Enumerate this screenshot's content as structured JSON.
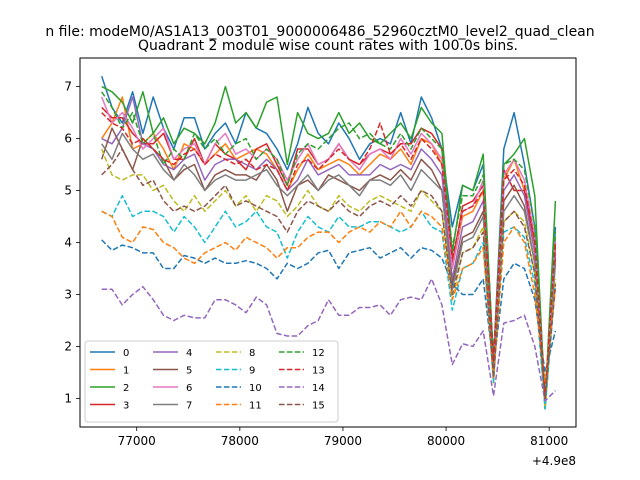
{
  "chart_data": {
    "type": "line",
    "suptitle": "n file: modeM0/AS1A13_003T01_9000006486_52960cztM0_level2_quad_clean",
    "title": "Quadrant 2 module wise count rates with 100.0s bins.",
    "xlabel": "",
    "ylabel": "",
    "x_offset_label": "+4.9e8",
    "xlim": [
      76450,
      81260
    ],
    "ylim": [
      0.45,
      7.55
    ],
    "xticks": [
      77000,
      78000,
      79000,
      80000,
      81000
    ],
    "xtick_labels": [
      "77000",
      "78000",
      "79000",
      "80000",
      "81000"
    ],
    "yticks": [
      1,
      2,
      3,
      4,
      5,
      6,
      7
    ],
    "ytick_labels": [
      "1",
      "2",
      "3",
      "4",
      "5",
      "6",
      "7"
    ],
    "legend_position": "lower-left",
    "legend_columns": 4,
    "x": [
      76660,
      76760,
      76860,
      76960,
      77060,
      77160,
      77260,
      77360,
      77460,
      77560,
      77660,
      77760,
      77860,
      77960,
      78060,
      78160,
      78260,
      78360,
      78460,
      78560,
      78660,
      78760,
      78860,
      78960,
      79060,
      79160,
      79260,
      79360,
      79460,
      79560,
      79660,
      79760,
      79860,
      79960,
      80060,
      80160,
      80260,
      80360,
      80460,
      80560,
      80660,
      80760,
      80860,
      80960,
      81060
    ],
    "series": [
      {
        "name": "0",
        "color": "#1f77b4",
        "dash": "solid",
        "values": [
          7.2,
          6.6,
          6.3,
          6.9,
          6.1,
          6.8,
          6.2,
          5.8,
          6.4,
          6.4,
          5.8,
          6.1,
          6.3,
          5.9,
          6.5,
          6.2,
          6.1,
          5.8,
          5.4,
          5.9,
          6.6,
          6.1,
          5.9,
          6.3,
          6.0,
          5.6,
          5.9,
          6.0,
          5.9,
          6.5,
          5.9,
          6.8,
          6.4,
          5.8,
          4.3,
          5.1,
          5.0,
          5.5,
          1.7,
          5.8,
          6.5,
          5.5,
          4.3,
          0.8,
          4.3
        ]
      },
      {
        "name": "1",
        "color": "#ff7f0e",
        "dash": "solid",
        "values": [
          6.0,
          6.3,
          6.8,
          5.8,
          5.9,
          6.1,
          5.8,
          5.4,
          5.9,
          5.8,
          5.5,
          5.7,
          5.9,
          5.6,
          5.7,
          5.8,
          5.7,
          5.4,
          5.0,
          5.4,
          5.7,
          5.4,
          5.5,
          5.6,
          5.5,
          5.3,
          5.5,
          5.7,
          5.6,
          5.8,
          5.5,
          6.0,
          5.9,
          5.5,
          3.5,
          4.5,
          4.6,
          5.0,
          1.6,
          5.2,
          5.6,
          5.0,
          3.8,
          1.0,
          3.9
        ]
      },
      {
        "name": "2",
        "color": "#2ca02c",
        "dash": "solid",
        "values": [
          7.0,
          6.9,
          6.7,
          6.3,
          6.9,
          6.1,
          6.4,
          5.9,
          6.2,
          6.1,
          5.9,
          6.3,
          7.0,
          6.3,
          6.5,
          6.2,
          6.7,
          6.8,
          5.5,
          6.5,
          6.1,
          6.0,
          6.1,
          6.5,
          6.1,
          6.3,
          6.0,
          5.9,
          6.1,
          6.3,
          6.0,
          6.6,
          6.3,
          6.1,
          3.8,
          5.1,
          5.0,
          5.7,
          1.6,
          5.5,
          5.7,
          6.0,
          4.9,
          0.9,
          4.8
        ]
      },
      {
        "name": "3",
        "color": "#d62728",
        "dash": "solid",
        "values": [
          6.6,
          6.4,
          6.4,
          6.1,
          5.9,
          5.9,
          6.1,
          5.6,
          5.6,
          6.0,
          5.5,
          5.9,
          5.7,
          5.6,
          5.4,
          5.8,
          5.9,
          5.5,
          5.1,
          5.8,
          5.8,
          5.5,
          5.6,
          5.9,
          5.6,
          5.5,
          5.7,
          5.8,
          5.7,
          5.9,
          5.9,
          6.2,
          6.1,
          5.8,
          3.6,
          4.7,
          4.8,
          5.1,
          1.7,
          5.4,
          5.0,
          5.0,
          4.0,
          0.9,
          4.0
        ]
      },
      {
        "name": "4",
        "color": "#9467bd",
        "dash": "solid",
        "values": [
          6.0,
          5.9,
          6.2,
          6.8,
          5.9,
          5.8,
          5.5,
          5.4,
          5.6,
          5.7,
          5.2,
          5.5,
          5.6,
          5.6,
          5.5,
          5.4,
          5.6,
          5.4,
          5.0,
          5.2,
          5.6,
          5.3,
          5.4,
          5.5,
          5.3,
          5.3,
          5.3,
          5.5,
          5.4,
          5.5,
          5.4,
          5.8,
          5.6,
          5.3,
          3.3,
          4.3,
          4.4,
          4.8,
          1.5,
          5.0,
          5.3,
          4.9,
          3.8,
          0.8,
          3.8
        ]
      },
      {
        "name": "5",
        "color": "#8c564b",
        "dash": "solid",
        "values": [
          5.6,
          6.2,
          5.8,
          5.4,
          6.0,
          5.8,
          5.6,
          5.2,
          5.4,
          5.5,
          5.0,
          5.3,
          5.4,
          5.3,
          5.3,
          5.2,
          5.5,
          5.2,
          4.6,
          5.1,
          5.2,
          5.0,
          5.3,
          5.2,
          5.1,
          5.0,
          5.2,
          5.3,
          5.2,
          5.4,
          5.2,
          5.6,
          5.4,
          5.0,
          3.2,
          4.1,
          4.2,
          4.6,
          1.4,
          4.8,
          5.1,
          4.7,
          3.6,
          0.9,
          3.7
        ]
      },
      {
        "name": "6",
        "color": "#e377c2",
        "dash": "solid",
        "values": [
          6.8,
          6.3,
          6.5,
          6.2,
          5.8,
          6.0,
          6.2,
          5.6,
          5.8,
          5.9,
          5.5,
          5.9,
          6.1,
          5.7,
          5.8,
          5.6,
          5.8,
          5.6,
          5.2,
          5.6,
          5.9,
          5.5,
          5.6,
          5.9,
          5.6,
          5.4,
          5.7,
          5.8,
          5.6,
          6.0,
          5.7,
          6.1,
          5.9,
          5.6,
          3.5,
          4.6,
          4.7,
          5.2,
          1.6,
          5.3,
          5.6,
          5.2,
          4.1,
          0.9,
          4.1
        ]
      },
      {
        "name": "7",
        "color": "#7f7f7f",
        "dash": "solid",
        "values": [
          5.9,
          5.6,
          6.1,
          5.8,
          5.6,
          5.7,
          5.4,
          5.2,
          5.5,
          5.3,
          5.0,
          5.2,
          5.3,
          5.2,
          5.2,
          5.3,
          5.4,
          5.1,
          4.9,
          5.1,
          5.3,
          5.0,
          5.2,
          5.3,
          5.1,
          4.9,
          5.2,
          5.2,
          5.1,
          5.3,
          5.0,
          5.4,
          5.2,
          5.0,
          3.1,
          4.0,
          4.1,
          4.5,
          1.4,
          4.6,
          4.9,
          4.6,
          3.6,
          0.8,
          3.6
        ]
      },
      {
        "name": "8",
        "color": "#bcbd22",
        "dash": "dashed",
        "values": [
          5.8,
          5.3,
          5.2,
          5.3,
          5.3,
          5.0,
          5.1,
          4.8,
          4.6,
          4.9,
          4.6,
          4.8,
          5.0,
          4.7,
          4.9,
          4.6,
          4.9,
          4.8,
          4.5,
          4.7,
          5.0,
          4.7,
          4.6,
          4.9,
          4.7,
          4.6,
          4.8,
          4.9,
          4.8,
          4.7,
          4.6,
          5.0,
          4.8,
          4.6,
          2.9,
          3.8,
          3.9,
          4.3,
          1.3,
          4.4,
          4.6,
          4.4,
          3.4,
          0.8,
          3.3
        ]
      },
      {
        "name": "9",
        "color": "#17becf",
        "dash": "dashed",
        "values": [
          4.6,
          4.5,
          4.9,
          4.5,
          4.6,
          4.6,
          4.5,
          4.2,
          4.5,
          4.3,
          4.0,
          4.3,
          4.6,
          4.3,
          4.4,
          4.6,
          4.3,
          4.2,
          3.7,
          4.2,
          4.5,
          4.3,
          4.2,
          4.5,
          4.3,
          4.3,
          4.4,
          4.4,
          4.3,
          4.2,
          4.3,
          4.6,
          4.3,
          4.2,
          2.7,
          3.5,
          3.6,
          4.0,
          1.3,
          4.2,
          4.3,
          4.1,
          3.2,
          0.8,
          3.2
        ]
      },
      {
        "name": "10",
        "color": "#1f77b4",
        "dash": "dashed",
        "values": [
          4.05,
          3.85,
          3.95,
          3.9,
          3.8,
          3.8,
          3.5,
          3.5,
          3.75,
          3.7,
          3.6,
          3.7,
          3.6,
          3.6,
          3.65,
          3.6,
          3.5,
          3.3,
          3.6,
          3.5,
          3.6,
          3.8,
          3.85,
          3.5,
          3.8,
          3.85,
          3.9,
          3.7,
          3.8,
          3.9,
          3.7,
          3.9,
          3.85,
          3.7,
          3.2,
          3.0,
          3.0,
          3.3,
          1.6,
          3.3,
          3.6,
          3.5,
          2.9,
          1.5,
          2.3
        ]
      },
      {
        "name": "11",
        "color": "#ff7f0e",
        "dash": "dashed",
        "values": [
          4.6,
          4.5,
          4.1,
          4.0,
          4.3,
          4.25,
          4.0,
          3.9,
          3.7,
          3.6,
          3.8,
          3.9,
          4.0,
          3.85,
          4.1,
          4.0,
          3.9,
          3.7,
          3.9,
          3.9,
          4.1,
          4.2,
          4.2,
          4.0,
          4.2,
          4.3,
          4.2,
          4.4,
          4.3,
          4.6,
          4.3,
          4.6,
          4.5,
          4.3,
          2.9,
          3.5,
          3.6,
          3.9,
          1.4,
          4.0,
          4.3,
          4.0,
          3.0,
          1.3,
          3.1
        ]
      },
      {
        "name": "12",
        "color": "#2ca02c",
        "dash": "dashed",
        "values": [
          6.9,
          6.6,
          6.2,
          6.5,
          5.9,
          6.1,
          5.5,
          5.8,
          5.6,
          6.1,
          5.8,
          6.0,
          5.7,
          5.9,
          6.0,
          5.6,
          5.8,
          5.6,
          5.1,
          5.7,
          5.9,
          5.8,
          6.0,
          6.2,
          6.3,
          6.0,
          6.1,
          5.9,
          5.8,
          6.1,
          5.8,
          6.2,
          6.0,
          5.8,
          3.9,
          4.9,
          4.9,
          5.3,
          1.8,
          5.5,
          5.6,
          5.4,
          4.3,
          1.0,
          4.2
        ]
      },
      {
        "name": "13",
        "color": "#d62728",
        "dash": "dashed",
        "values": [
          6.5,
          6.3,
          6.2,
          5.9,
          6.0,
          5.8,
          5.6,
          5.5,
          5.7,
          5.8,
          5.5,
          5.7,
          5.6,
          5.5,
          5.6,
          5.4,
          5.5,
          5.4,
          5.0,
          5.5,
          5.6,
          5.4,
          5.6,
          5.8,
          5.6,
          5.5,
          5.8,
          6.3,
          5.7,
          5.9,
          5.6,
          6.0,
          5.8,
          5.5,
          3.7,
          4.6,
          4.7,
          5.0,
          1.7,
          5.2,
          5.4,
          5.1,
          4.0,
          1.0,
          4.0
        ]
      },
      {
        "name": "14",
        "color": "#9467bd",
        "dash": "dashed",
        "values": [
          3.1,
          3.1,
          2.8,
          3.0,
          3.15,
          2.9,
          2.6,
          2.5,
          2.6,
          2.55,
          2.55,
          2.9,
          2.9,
          2.8,
          2.65,
          2.95,
          2.8,
          2.25,
          2.2,
          2.2,
          2.4,
          2.5,
          2.9,
          2.6,
          2.6,
          2.75,
          2.75,
          2.8,
          2.6,
          2.9,
          2.95,
          2.9,
          3.3,
          2.8,
          1.65,
          2.05,
          2.0,
          2.3,
          1.05,
          2.45,
          2.5,
          2.6,
          2.0,
          0.95,
          1.15
        ]
      },
      {
        "name": "15",
        "color": "#8c564b",
        "dash": "dashed",
        "values": [
          5.3,
          5.5,
          5.8,
          5.4,
          5.1,
          5.2,
          4.8,
          4.6,
          4.7,
          4.6,
          4.7,
          4.9,
          5.1,
          4.7,
          4.8,
          4.7,
          4.6,
          4.5,
          4.2,
          4.6,
          4.8,
          4.7,
          4.6,
          4.8,
          4.6,
          4.5,
          4.7,
          4.8,
          4.7,
          4.9,
          4.7,
          5.0,
          4.9,
          4.6,
          3.0,
          3.8,
          3.9,
          4.2,
          1.4,
          4.4,
          4.6,
          4.3,
          3.4,
          1.0,
          3.2
        ]
      }
    ]
  }
}
